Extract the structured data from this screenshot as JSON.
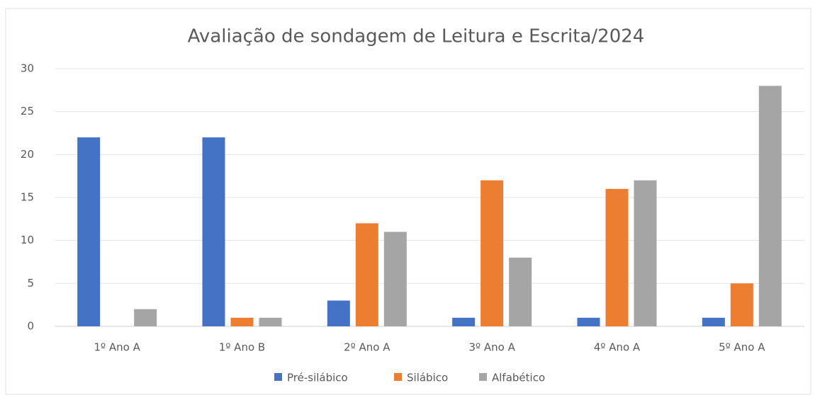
{
  "chart_data": {
    "type": "bar",
    "title": "Avaliação de sondagem de Leitura e Escrita/2024",
    "categories": [
      "1º Ano A",
      "1º Ano B",
      "2º Ano A",
      "3º Ano A",
      "4º Ano A",
      "5º Ano A"
    ],
    "series": [
      {
        "name": "Pré-silábico",
        "color": "#4472c4",
        "values": [
          22,
          22,
          3,
          1,
          1,
          1
        ]
      },
      {
        "name": "Silábico",
        "color": "#ed7d31",
        "values": [
          0,
          1,
          12,
          17,
          16,
          5
        ]
      },
      {
        "name": "Alfabético",
        "color": "#a5a5a5",
        "values": [
          2,
          1,
          11,
          8,
          17,
          28
        ]
      }
    ],
    "ylim": [
      0,
      30
    ],
    "yticks": [
      0,
      5,
      10,
      15,
      20,
      25,
      30
    ],
    "grid": true,
    "legend": "bottom"
  }
}
